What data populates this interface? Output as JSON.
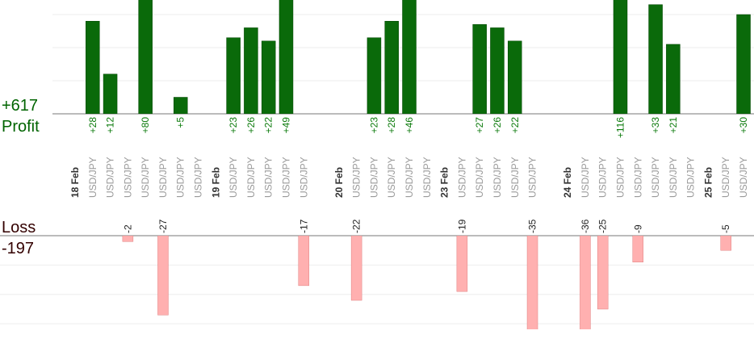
{
  "chart_data": [
    {
      "type": "bar",
      "total": 617,
      "total_label": "+617",
      "label": "Profit",
      "color": "#0a6a0a",
      "categories": [
        "18 Feb",
        "USD/JPY",
        "USD/JPY",
        "USD/JPY",
        "USD/JPY",
        "USD/JPY",
        "USD/JPY",
        "USD/JPY",
        "19 Feb",
        "USD/JPY",
        "USD/JPY",
        "USD/JPY",
        "USD/JPY",
        "USD/JPY",
        null,
        "20 Feb",
        "USD/JPY",
        "USD/JPY",
        "USD/JPY",
        "USD/JPY",
        "USD/JPY",
        "23 Feb",
        "USD/JPY",
        "USD/JPY",
        "USD/JPY",
        "USD/JPY",
        "USD/JPY",
        null,
        "24 Feb",
        "USD/JPY",
        "USD/JPY",
        "USD/JPY",
        "USD/JPY",
        "USD/JPY",
        "USD/JPY",
        "USD/JPY",
        "25 Feb",
        "USD/JPY",
        "USD/JPY"
      ],
      "values": [
        null,
        28,
        12,
        null,
        80,
        null,
        5,
        null,
        null,
        23,
        26,
        22,
        49,
        null,
        null,
        null,
        null,
        23,
        28,
        46,
        null,
        null,
        null,
        27,
        26,
        22,
        null,
        null,
        null,
        null,
        null,
        116,
        null,
        33,
        21,
        null,
        null,
        null,
        30
      ],
      "value_labels": [
        null,
        "+28",
        "+12",
        null,
        "+80",
        null,
        "+5",
        null,
        null,
        "+23",
        "+26",
        "+22",
        "+49",
        null,
        null,
        null,
        null,
        "+23",
        "+28",
        "+46",
        null,
        null,
        null,
        "+27",
        "+26",
        "+22",
        null,
        null,
        null,
        null,
        null,
        "+116",
        null,
        "+33",
        "+21",
        null,
        null,
        null,
        "+30"
      ],
      "ylim": [
        0,
        34.4
      ],
      "yticks": [
        0,
        10,
        20,
        30
      ],
      "grid": true
    },
    {
      "type": "bar",
      "total": -197,
      "label": "Loss",
      "color": "#ffb0b0",
      "values": [
        null,
        null,
        null,
        -2,
        null,
        -27,
        null,
        null,
        null,
        null,
        null,
        null,
        null,
        -17,
        null,
        null,
        -22,
        null,
        null,
        null,
        null,
        null,
        -19,
        null,
        null,
        null,
        -35,
        null,
        null,
        -36,
        -25,
        null,
        -9,
        null,
        null,
        null,
        null,
        -5,
        null
      ],
      "ylim": [
        -31.6,
        0
      ],
      "yticks": [
        -30,
        -20,
        -10,
        0
      ],
      "grid": true
    }
  ]
}
